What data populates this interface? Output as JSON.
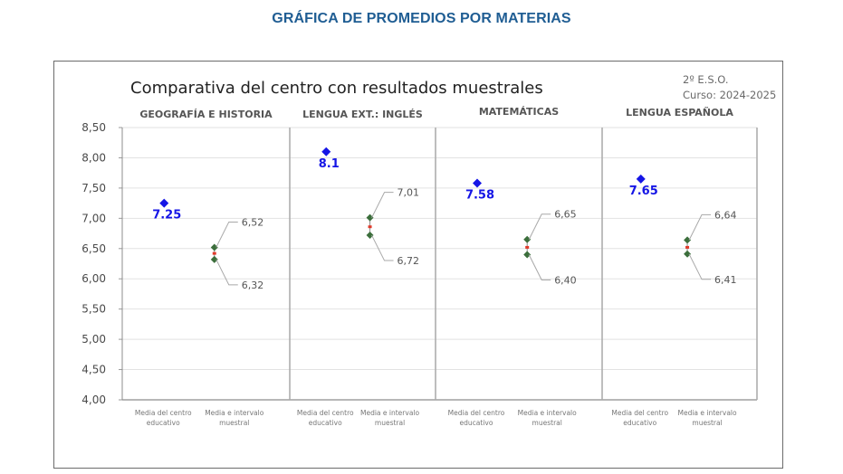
{
  "page": {
    "title": "GRÁFICA DE PROMEDIOS POR MATERIAS"
  },
  "chart_data": {
    "type": "scatter",
    "title": "Comparativa del centro con resultados muestrales",
    "subtitle_lines": [
      "2º E.S.O.",
      "Curso: 2024-2025"
    ],
    "ylim": [
      4.0,
      8.5
    ],
    "yticks": [
      "4,00",
      "4,50",
      "5,00",
      "5,50",
      "6,00",
      "6,50",
      "7,00",
      "7,50",
      "8,00",
      "8,50"
    ],
    "ytick_values": [
      4.0,
      4.5,
      5.0,
      5.5,
      6.0,
      6.5,
      7.0,
      7.5,
      8.0,
      8.5
    ],
    "grid": true,
    "x_category_labels": [
      "Media del centro educativo",
      "Media e intervalo muestral"
    ],
    "panels": [
      {
        "subject": "GEOGRAFÍA E HISTORIA",
        "center_mean": 7.25,
        "center_label": "7.25",
        "interval_upper": 6.52,
        "interval_upper_label": "6,52",
        "interval_lower": 6.32,
        "interval_lower_label": "6,32",
        "sample_mean": 6.42
      },
      {
        "subject": "LENGUA EXT.: INGLÉS",
        "center_mean": 8.1,
        "center_label": "8.1",
        "interval_upper": 7.01,
        "interval_upper_label": "7,01",
        "interval_lower": 6.72,
        "interval_lower_label": "6,72",
        "sample_mean": 6.86
      },
      {
        "subject": "MATEMÁTICAS",
        "center_mean": 7.58,
        "center_label": "7.58",
        "interval_upper": 6.65,
        "interval_upper_label": "6,65",
        "interval_lower": 6.4,
        "interval_lower_label": "6,40",
        "sample_mean": 6.52
      },
      {
        "subject": "LENGUA ESPAÑOLA",
        "center_mean": 7.65,
        "center_label": "7.65",
        "interval_upper": 6.64,
        "interval_upper_label": "6,64",
        "interval_lower": 6.41,
        "interval_lower_label": "6,41",
        "sample_mean": 6.52
      }
    ],
    "colors": {
      "center_marker": "#1515e6",
      "center_label": "#1515e6",
      "interval_marker": "#3b6e3b",
      "sample_mean_marker": "#e03a2a",
      "interval_line": "#8a8a8a",
      "label_text": "#555555",
      "grid": "#e2e2e2",
      "divider": "#a9a9a9",
      "subject_text": "#555555"
    }
  }
}
